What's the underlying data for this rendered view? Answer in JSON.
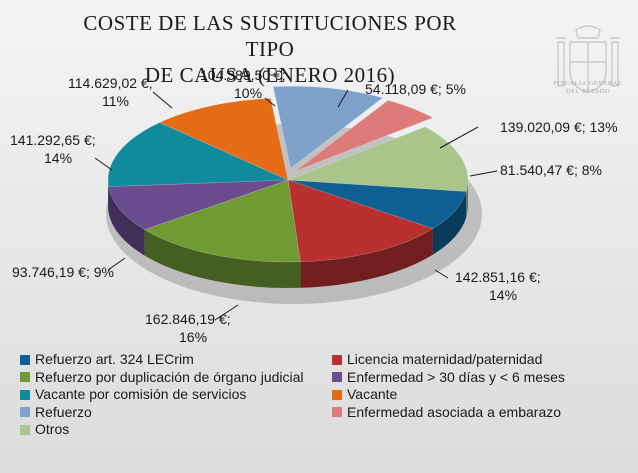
{
  "chart_data": {
    "type": "pie",
    "title": "COSTE DE LAS SUSTITUCIONES POR TIPO DE CAUSA (ENERO 2016)",
    "title_lines": [
      "COSTE DE LAS SUSTITUCIONES POR TIPO",
      "DE CAUSA (ENERO 2016)"
    ],
    "legend_position": "bottom",
    "slices": [
      {
        "name": "Refuerzo art. 324 LECrim",
        "value": 81540.47,
        "percent": 8,
        "label": "81.540,47 €; 8%",
        "color": "#0f5f92"
      },
      {
        "name": "Licencia maternidad/paternidad",
        "value": 142851.16,
        "percent": 14,
        "label": "142.851,16 €;\n14%",
        "color": "#b83030"
      },
      {
        "name": "Refuerzo por duplicación de órgano judicial",
        "value": 162846.19,
        "percent": 16,
        "label": "162.846,19 €;\n16%",
        "color": "#6f9a34"
      },
      {
        "name": "Enfermedad > 30 días y < 6 meses",
        "value": 93746.19,
        "percent": 9,
        "label": "93.746,19 €; 9%",
        "color": "#6a4c8f"
      },
      {
        "name": "Vacante por comisión de servicios",
        "value": 141292.65,
        "percent": 14,
        "label": "141.292,65 €;\n14%",
        "color": "#118a9e"
      },
      {
        "name": "Vacante",
        "value": 114629.02,
        "percent": 11,
        "label": "114.629,02 €;\n11%",
        "color": "#e46c16"
      },
      {
        "name": "Refuerzo",
        "value": 104389.5,
        "percent": 10,
        "label": "104.389,50 €;\n10%",
        "color": "#7ea2cc"
      },
      {
        "name": "Enfermedad asociada a embarazo",
        "value": 54118.09,
        "percent": 5,
        "label": "54.118,09 €; 5%",
        "color": "#dc7b79"
      },
      {
        "name": "Otros",
        "value": 139020.09,
        "percent": 13,
        "label": "139.020,09 €; 13%",
        "color": "#a9c58a"
      }
    ]
  },
  "logo": {
    "text": "FISCALÍA GENERAL DEL ESTADO",
    "text_lines": [
      "FISCALÍA GENERAL",
      "DEL ESTADO"
    ]
  }
}
